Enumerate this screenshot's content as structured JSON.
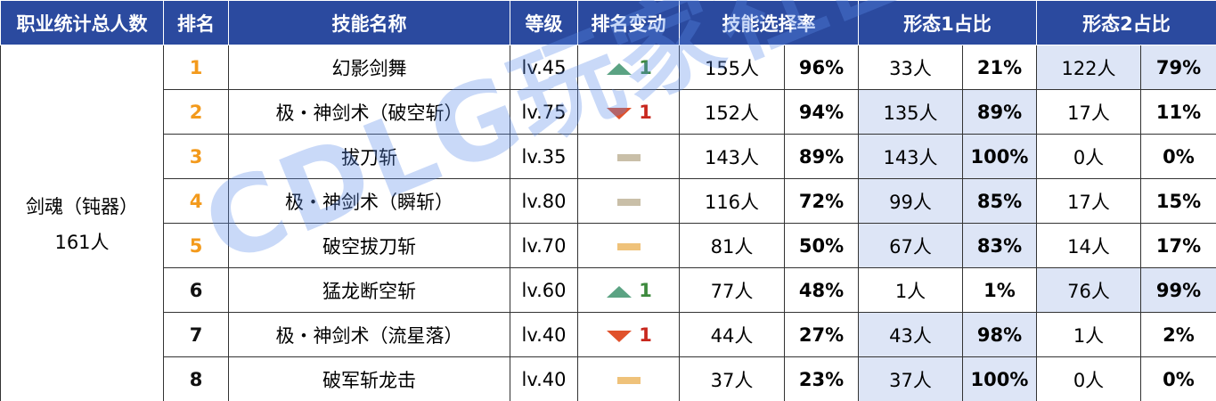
{
  "table": {
    "header": [
      "职业统计总人数",
      "排名",
      "技能名称",
      "等级",
      "排名变动",
      "技能选择率",
      "形态1占比",
      "形态2占比"
    ],
    "class_name": "剑魂（钝器）",
    "class_total": "161人",
    "rows": [
      {
        "rank": 1,
        "name": "幻影剑舞",
        "level": "lv.45",
        "change": {
          "dir": "up",
          "amount": 1
        },
        "rate": [
          "155人",
          "96%"
        ],
        "form1": [
          "33人",
          "21%"
        ],
        "form2": [
          "122人",
          "79%"
        ]
      },
      {
        "rank": 2,
        "name": "极・神剑术（破空斩）",
        "level": "lv.75",
        "change": {
          "dir": "down",
          "amount": 1
        },
        "rate": [
          "152人",
          "94%"
        ],
        "form1": [
          "135人",
          "89%"
        ],
        "form2": [
          "17人",
          "11%"
        ]
      },
      {
        "rank": 3,
        "name": "拔刀斩",
        "level": "lv.35",
        "change": {
          "dir": "flat"
        },
        "rate": [
          "143人",
          "89%"
        ],
        "form1": [
          "143人",
          "100%"
        ],
        "form2": [
          "0人",
          "0%"
        ]
      },
      {
        "rank": 4,
        "name": "极・神剑术（瞬斩）",
        "level": "lv.80",
        "change": {
          "dir": "flat"
        },
        "rate": [
          "116人",
          "72%"
        ],
        "form1": [
          "99人",
          "85%"
        ],
        "form2": [
          "17人",
          "15%"
        ]
      },
      {
        "rank": 5,
        "name": "破空拔刀斩",
        "level": "lv.70",
        "change": {
          "dir": "flat"
        },
        "rate": [
          "81人",
          "50%"
        ],
        "form1": [
          "67人",
          "83%"
        ],
        "form2": [
          "14人",
          "17%"
        ]
      },
      {
        "rank": 6,
        "name": "猛龙断空斩",
        "level": "lv.60",
        "change": {
          "dir": "up",
          "amount": 1
        },
        "rate": [
          "77人",
          "48%"
        ],
        "form1": [
          "1人",
          "1%"
        ],
        "form2": [
          "76人",
          "99%"
        ]
      },
      {
        "rank": 7,
        "name": "极・神剑术（流星落）",
        "level": "lv.40",
        "change": {
          "dir": "down",
          "amount": 1
        },
        "rate": [
          "44人",
          "27%"
        ],
        "form1": [
          "43人",
          "98%"
        ],
        "form2": [
          "1人",
          "2%"
        ]
      },
      {
        "rank": 8,
        "name": "破军斩龙击",
        "level": "lv.40",
        "change": {
          "dir": "flat"
        },
        "rate": [
          "37人",
          "23%"
        ],
        "form1": [
          "37人",
          "100%"
        ],
        "form2": [
          "0人",
          "0%"
        ]
      }
    ]
  },
  "watermark": "CDLG玩家社区"
}
